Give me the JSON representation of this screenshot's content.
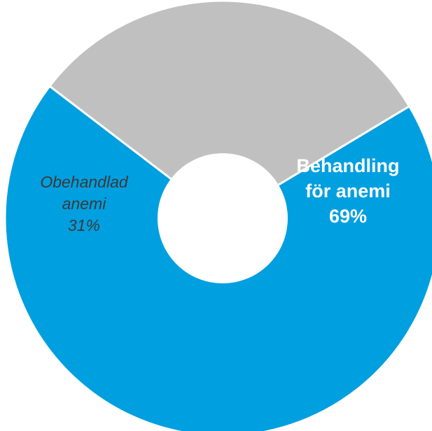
{
  "chart_data": {
    "type": "pie",
    "variant": "donut",
    "title": "",
    "slices": [
      {
        "label_lines": [
          "Behandling",
          "för anemi"
        ],
        "value_label": "69%",
        "value": 69,
        "color": "#009fe0",
        "text_color": "#ffffff",
        "font_weight": "bold",
        "font_style": "normal"
      },
      {
        "label_lines": [
          "Obehandlad",
          "anemi"
        ],
        "value_label": "31%",
        "value": 31,
        "color": "#c0c0c0",
        "text_color": "#3a3a3a",
        "font_weight": "normal",
        "font_style": "italic"
      }
    ],
    "legend": "none",
    "center_color": "#ffffff",
    "separator_color": "#ffffff"
  }
}
